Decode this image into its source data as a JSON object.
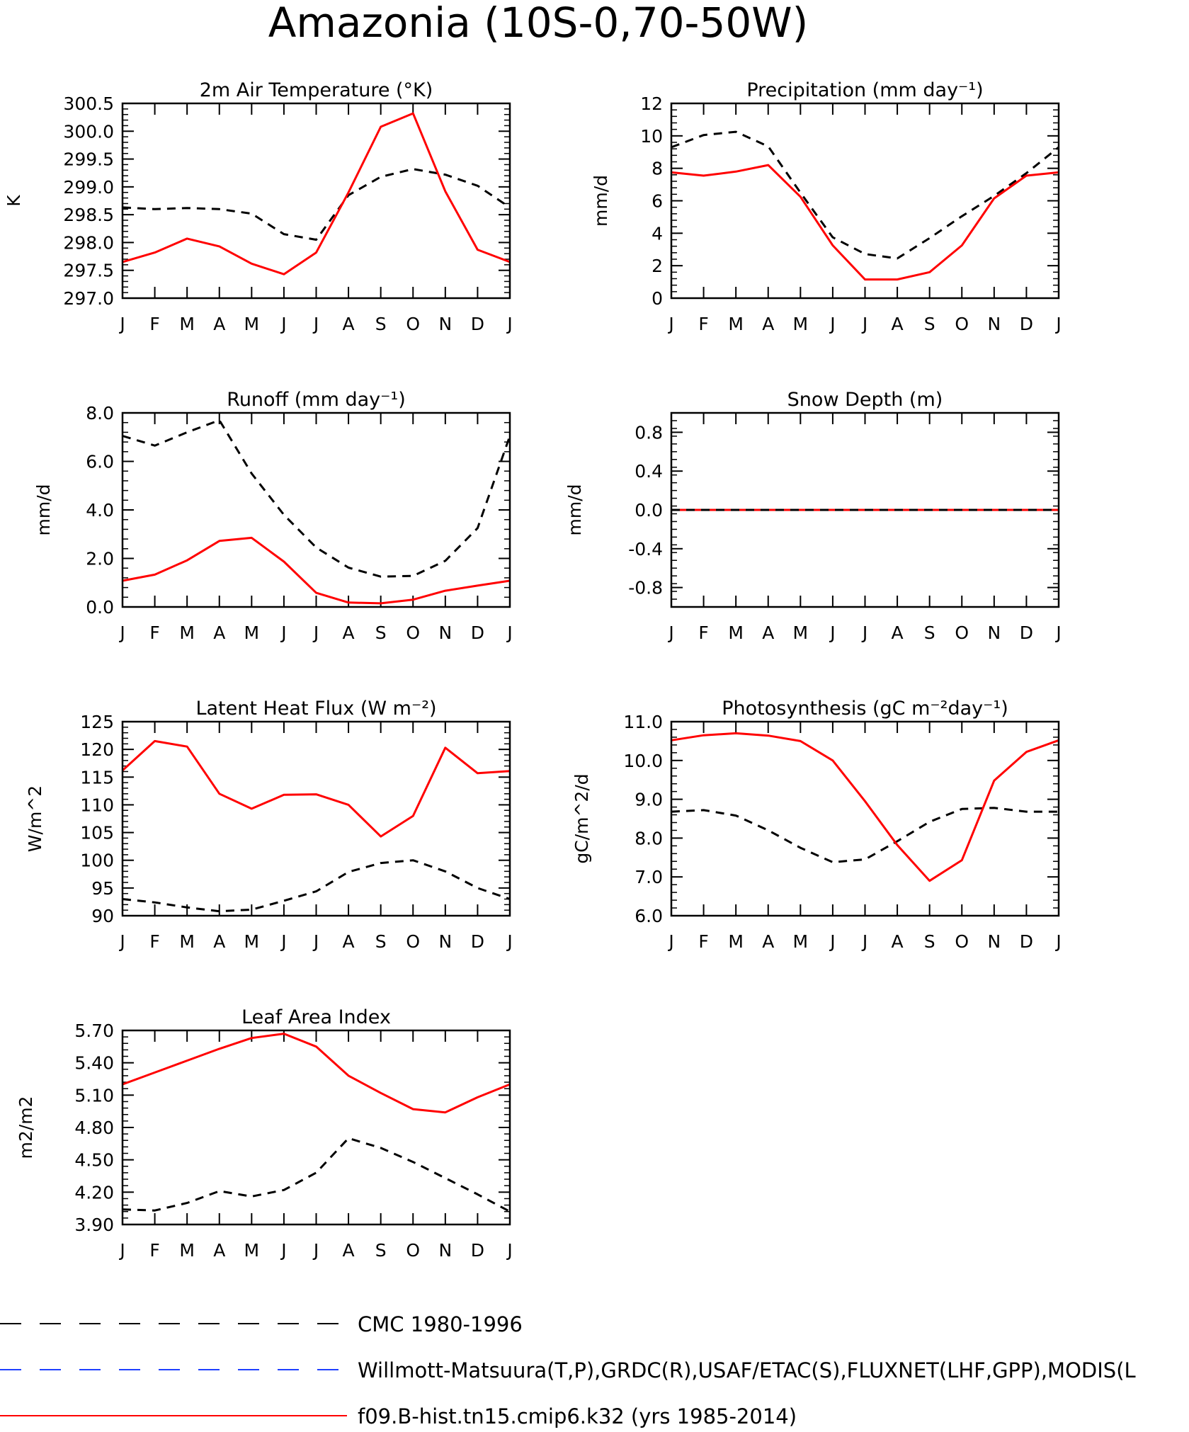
{
  "title": "Amazonia (10S-0,70-50W)",
  "colors": {
    "obs": "#000000",
    "obs2": "#1f3fff",
    "model": "#ff0000"
  },
  "legend": [
    {
      "label": "CMC 1980-1996",
      "color": "#000000",
      "dash": "dashed"
    },
    {
      "label": "Willmott-Matsuura(T,P),GRDC(R),USAF/ETAC(S),FLUXNET(LHF,GPP),MODIS(L",
      "color": "#1f3fff",
      "dash": "dashed"
    },
    {
      "label": "f09.B-hist.tn15.cmip6.k32 (yrs 1985-2014)",
      "color": "#ff0000",
      "dash": "solid"
    }
  ],
  "chart_data": [
    {
      "type": "line",
      "title": "2m Air Temperature (°K)",
      "ylabel": "K",
      "categories": [
        "J",
        "F",
        "M",
        "A",
        "M",
        "J",
        "J",
        "A",
        "S",
        "O",
        "N",
        "D",
        "J"
      ],
      "ylim": [
        297.0,
        300.5
      ],
      "yticks": [
        "297.0",
        "297.5",
        "298.0",
        "298.5",
        "299.0",
        "299.5",
        "300.0",
        "300.5"
      ],
      "ytick_values": [
        297.0,
        297.5,
        298.0,
        298.5,
        299.0,
        299.5,
        300.0,
        300.5
      ],
      "series": [
        {
          "values": [
            298.63,
            298.6,
            298.62,
            298.6,
            298.52,
            298.15,
            298.05,
            298.85,
            299.18,
            299.32,
            299.22,
            299.02,
            298.63
          ],
          "color": "#000000",
          "dash": "dashed"
        },
        {
          "values": [
            297.65,
            297.82,
            298.07,
            297.93,
            297.62,
            297.43,
            297.82,
            298.9,
            300.08,
            300.32,
            298.92,
            297.87,
            297.65
          ],
          "color": "#ff0000",
          "dash": "solid"
        }
      ]
    },
    {
      "type": "line",
      "title": "Precipitation (mm day⁻¹)",
      "ylabel": "mm/d",
      "categories": [
        "J",
        "F",
        "M",
        "A",
        "M",
        "J",
        "J",
        "A",
        "S",
        "O",
        "N",
        "D",
        "J"
      ],
      "ylim": [
        0,
        12
      ],
      "yticks": [
        "0",
        "2",
        "4",
        "6",
        "8",
        "10",
        "12"
      ],
      "ytick_values": [
        0,
        2,
        4,
        6,
        8,
        10,
        12
      ],
      "series": [
        {
          "values": [
            9.3,
            10.05,
            10.25,
            9.35,
            6.5,
            3.75,
            2.72,
            2.45,
            3.7,
            5.05,
            6.3,
            7.7,
            9.3
          ],
          "color": "#000000",
          "dash": "dashed"
        },
        {
          "values": [
            7.75,
            7.55,
            7.8,
            8.2,
            6.25,
            3.25,
            1.15,
            1.15,
            1.6,
            3.25,
            6.15,
            7.55,
            7.75
          ],
          "color": "#ff0000",
          "dash": "solid"
        }
      ]
    },
    {
      "type": "line",
      "title": "Runoff (mm day⁻¹)",
      "ylabel": "mm/d",
      "categories": [
        "J",
        "F",
        "M",
        "A",
        "M",
        "J",
        "J",
        "A",
        "S",
        "O",
        "N",
        "D",
        "J"
      ],
      "ylim": [
        0,
        8
      ],
      "yticks": [
        "0.0",
        "2.0",
        "4.0",
        "6.0",
        "8.0"
      ],
      "ytick_values": [
        0,
        2,
        4,
        6,
        8
      ],
      "series": [
        {
          "values": [
            7.05,
            6.65,
            7.2,
            7.7,
            5.5,
            3.8,
            2.45,
            1.62,
            1.25,
            1.28,
            1.9,
            3.25,
            7.05
          ],
          "color": "#000000",
          "dash": "dashed"
        },
        {
          "values": [
            1.08,
            1.33,
            1.92,
            2.72,
            2.85,
            1.87,
            0.58,
            0.18,
            0.15,
            0.3,
            0.67,
            0.88,
            1.08
          ],
          "color": "#ff0000",
          "dash": "solid"
        }
      ]
    },
    {
      "type": "line",
      "title": "Snow Depth (m)",
      "ylabel": "mm/d",
      "categories": [
        "J",
        "F",
        "M",
        "A",
        "M",
        "J",
        "J",
        "A",
        "S",
        "O",
        "N",
        "D",
        "J"
      ],
      "ylim": [
        -1.0,
        1.0
      ],
      "yticks": [
        "-0.8",
        "-0.4",
        "0.0",
        "0.4",
        "0.8"
      ],
      "ytick_values": [
        -0.8,
        -0.4,
        0.0,
        0.4,
        0.8
      ],
      "series": [
        {
          "values": [
            0,
            0,
            0,
            0,
            0,
            0,
            0,
            0,
            0,
            0,
            0,
            0,
            0
          ],
          "color": "#ff0000",
          "dash": "solid"
        },
        {
          "values": [
            0,
            0,
            0,
            0,
            0,
            0,
            0,
            0,
            0,
            0,
            0,
            0,
            0
          ],
          "color": "#000000",
          "dash": "dashed"
        }
      ]
    },
    {
      "type": "line",
      "title": "Latent Heat Flux (W m⁻²)",
      "ylabel": "W/m^2",
      "categories": [
        "J",
        "F",
        "M",
        "A",
        "M",
        "J",
        "J",
        "A",
        "S",
        "O",
        "N",
        "D",
        "J"
      ],
      "ylim": [
        90,
        125
      ],
      "yticks": [
        "90",
        "95",
        "100",
        "105",
        "110",
        "115",
        "120",
        "125"
      ],
      "ytick_values": [
        90,
        95,
        100,
        105,
        110,
        115,
        120,
        125
      ],
      "series": [
        {
          "values": [
            93.0,
            92.4,
            91.5,
            90.8,
            91.1,
            92.7,
            94.4,
            97.9,
            99.5,
            100.0,
            98.0,
            95.0,
            93.0
          ],
          "color": "#000000",
          "dash": "dashed"
        },
        {
          "values": [
            116.2,
            121.5,
            120.5,
            112.0,
            109.3,
            111.8,
            111.9,
            110.0,
            104.3,
            108.0,
            120.3,
            115.7,
            116.1
          ],
          "color": "#ff0000",
          "dash": "solid"
        }
      ]
    },
    {
      "type": "line",
      "title": "Photosynthesis (gC m⁻²day⁻¹)",
      "ylabel": "gC/m^2/d",
      "categories": [
        "J",
        "F",
        "M",
        "A",
        "M",
        "J",
        "J",
        "A",
        "S",
        "O",
        "N",
        "D",
        "J"
      ],
      "ylim": [
        6.0,
        11.0
      ],
      "yticks": [
        "6.0",
        "7.0",
        "8.0",
        "9.0",
        "10.0",
        "11.0"
      ],
      "ytick_values": [
        6,
        7,
        8,
        9,
        10,
        11
      ],
      "series": [
        {
          "values": [
            8.68,
            8.72,
            8.58,
            8.2,
            7.75,
            7.38,
            7.45,
            7.92,
            8.42,
            8.75,
            8.78,
            8.68,
            8.68
          ],
          "color": "#000000",
          "dash": "dashed"
        },
        {
          "values": [
            10.52,
            10.65,
            10.7,
            10.64,
            10.5,
            10.0,
            8.95,
            7.82,
            6.9,
            7.43,
            9.48,
            10.22,
            10.52
          ],
          "color": "#ff0000",
          "dash": "solid"
        }
      ]
    },
    {
      "type": "line",
      "title": "Leaf Area Index",
      "ylabel": "m2/m2",
      "categories": [
        "J",
        "F",
        "M",
        "A",
        "M",
        "J",
        "J",
        "A",
        "S",
        "O",
        "N",
        "D",
        "J"
      ],
      "ylim": [
        3.9,
        5.7
      ],
      "yticks": [
        "3.90",
        "4.20",
        "4.50",
        "4.80",
        "5.10",
        "5.40",
        "5.70"
      ],
      "ytick_values": [
        3.9,
        4.2,
        4.5,
        4.8,
        5.1,
        5.4,
        5.7
      ],
      "series": [
        {
          "values": [
            4.04,
            4.03,
            4.1,
            4.21,
            4.16,
            4.22,
            4.38,
            4.7,
            4.61,
            4.48,
            4.33,
            4.18,
            4.02
          ],
          "color": "#000000",
          "dash": "dashed"
        },
        {
          "values": [
            5.2,
            5.31,
            5.42,
            5.53,
            5.63,
            5.67,
            5.55,
            5.28,
            5.12,
            4.97,
            4.94,
            5.08,
            5.2
          ],
          "color": "#ff0000",
          "dash": "solid"
        }
      ]
    }
  ]
}
